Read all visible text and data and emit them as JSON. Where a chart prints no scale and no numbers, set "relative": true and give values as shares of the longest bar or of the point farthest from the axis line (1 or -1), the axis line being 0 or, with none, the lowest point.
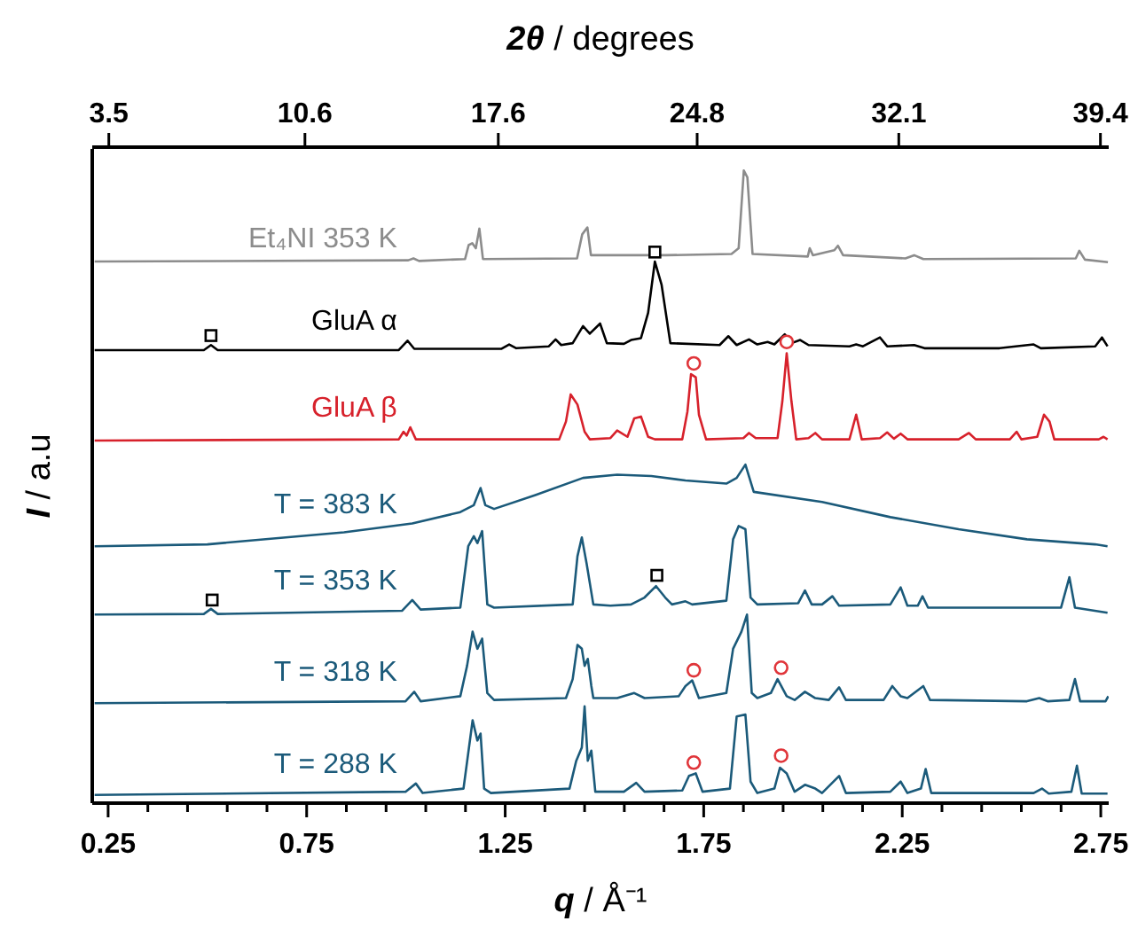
{
  "chart_data": {
    "type": "line",
    "relative": true,
    "xlabel": "q / Å⁻¹",
    "ylabel": "I / a.u",
    "x2label": "2θ / degrees",
    "marker": "none",
    "xlim": [
      0.21,
      2.77
    ],
    "xticks": [
      0.25,
      {
        "value": 0.35,
        "label": null
      },
      {
        "value": 0.45,
        "label": null
      },
      {
        "value": 0.55,
        "label": null
      },
      {
        "value": 0.65,
        "label": null
      },
      0.75,
      {
        "value": 0.85,
        "label": null
      },
      {
        "value": 0.95,
        "label": null
      },
      {
        "value": 1.05,
        "label": null
      },
      {
        "value": 1.15,
        "label": null
      },
      1.25,
      {
        "value": 1.35,
        "label": null
      },
      {
        "value": 1.45,
        "label": null
      },
      {
        "value": 1.55,
        "label": null
      },
      {
        "value": 1.65,
        "label": null
      },
      1.75,
      {
        "value": 1.85,
        "label": null
      },
      {
        "value": 1.95,
        "label": null
      },
      {
        "value": 2.05,
        "label": null
      },
      {
        "value": 2.15,
        "label": null
      },
      2.25,
      {
        "value": 2.35,
        "label": null
      },
      {
        "value": 2.45,
        "label": null
      },
      {
        "value": 2.55,
        "label": null
      },
      {
        "value": 2.65,
        "label": null
      },
      2.75
    ],
    "x2lim": [
      2.9,
      39.7
    ],
    "x2ticks": [
      3.5,
      10.6,
      17.6,
      24.8,
      32.1,
      39.4
    ],
    "series": [
      {
        "name": "Et₄NI 353 K",
        "color": "#8c8c8c",
        "x": [
          0.216,
          1.006,
          1.019,
          1.033,
          1.149,
          1.158,
          1.167,
          1.176,
          1.185,
          1.194,
          1.431,
          1.444,
          1.457,
          1.466,
          1.654,
          1.82,
          1.838,
          1.851,
          1.86,
          1.873,
          2.012,
          2.017,
          2.025,
          2.079,
          2.088,
          2.101,
          2.258,
          2.28,
          2.303,
          2.687,
          2.696,
          2.71,
          2.768
        ],
        "values": [
          0.856,
          0.858,
          0.861,
          0.857,
          0.86,
          0.882,
          0.885,
          0.877,
          0.908,
          0.86,
          0.861,
          0.899,
          0.91,
          0.866,
          0.866,
          0.868,
          0.877,
          1.0,
          0.989,
          0.868,
          0.864,
          0.877,
          0.866,
          0.874,
          0.881,
          0.866,
          0.861,
          0.866,
          0.86,
          0.861,
          0.873,
          0.859,
          0.855
        ]
      },
      {
        "name": "GluA α",
        "color": "#000000",
        "x": [
          0.216,
          0.491,
          0.509,
          0.526,
          0.982,
          1.004,
          1.021,
          1.24,
          1.26,
          1.278,
          1.36,
          1.377,
          1.391,
          1.42,
          1.446,
          1.463,
          1.489,
          1.506,
          1.549,
          1.567,
          1.592,
          1.61,
          1.627,
          1.644,
          1.666,
          1.79,
          1.812,
          1.833,
          1.864,
          1.885,
          1.911,
          1.928,
          1.954,
          1.971,
          1.993,
          2.014,
          2.117,
          2.134,
          2.151,
          2.194,
          2.212,
          2.28,
          2.306,
          2.495,
          2.581,
          2.599,
          2.736,
          2.753,
          2.767
        ],
        "values": [
          0.716,
          0.716,
          0.724,
          0.716,
          0.716,
          0.731,
          0.718,
          0.718,
          0.725,
          0.719,
          0.722,
          0.733,
          0.724,
          0.727,
          0.754,
          0.742,
          0.758,
          0.727,
          0.726,
          0.732,
          0.735,
          0.775,
          0.856,
          0.819,
          0.727,
          0.724,
          0.738,
          0.724,
          0.733,
          0.725,
          0.729,
          0.725,
          0.741,
          0.727,
          0.732,
          0.724,
          0.722,
          0.725,
          0.722,
          0.736,
          0.722,
          0.724,
          0.719,
          0.719,
          0.725,
          0.719,
          0.722,
          0.736,
          0.722
        ]
      },
      {
        "name": "GluA β",
        "color": "#d7212b",
        "x": [
          0.216,
          0.982,
          0.994,
          1.002,
          1.011,
          1.025,
          1.386,
          1.403,
          1.415,
          1.432,
          1.45,
          1.463,
          1.515,
          1.532,
          1.558,
          1.575,
          1.592,
          1.61,
          1.627,
          1.696,
          1.709,
          1.718,
          1.73,
          1.738,
          1.756,
          1.85,
          1.864,
          1.881,
          1.936,
          1.948,
          1.959,
          1.971,
          1.983,
          2.014,
          2.031,
          2.048,
          2.117,
          2.134,
          2.148,
          2.194,
          2.212,
          2.229,
          2.246,
          2.263,
          2.392,
          2.418,
          2.435,
          2.521,
          2.538,
          2.55,
          2.59,
          2.607,
          2.621,
          2.633,
          2.745,
          2.757,
          2.767
        ],
        "values": [
          0.573,
          0.575,
          0.587,
          0.581,
          0.594,
          0.575,
          0.575,
          0.603,
          0.646,
          0.63,
          0.587,
          0.575,
          0.577,
          0.589,
          0.579,
          0.608,
          0.611,
          0.579,
          0.575,
          0.575,
          0.619,
          0.678,
          0.673,
          0.614,
          0.575,
          0.577,
          0.585,
          0.577,
          0.577,
          0.635,
          0.711,
          0.635,
          0.575,
          0.577,
          0.585,
          0.575,
          0.575,
          0.614,
          0.575,
          0.577,
          0.586,
          0.576,
          0.584,
          0.575,
          0.575,
          0.585,
          0.575,
          0.575,
          0.587,
          0.575,
          0.579,
          0.614,
          0.603,
          0.575,
          0.575,
          0.579,
          0.575
        ]
      },
      {
        "name": "T = 383 K",
        "color": "#1b5a7a",
        "x": [
          0.216,
          0.5,
          0.844,
          1.016,
          1.137,
          1.171,
          1.188,
          1.2,
          1.222,
          1.326,
          1.446,
          1.532,
          1.618,
          1.704,
          1.807,
          1.833,
          1.855,
          1.876,
          2.048,
          2.22,
          2.392,
          2.564,
          2.736,
          2.767
        ],
        "values": [
          0.406,
          0.409,
          0.428,
          0.442,
          0.46,
          0.471,
          0.498,
          0.471,
          0.465,
          0.487,
          0.514,
          0.519,
          0.517,
          0.51,
          0.505,
          0.514,
          0.535,
          0.492,
          0.476,
          0.452,
          0.433,
          0.417,
          0.409,
          0.406
        ]
      },
      {
        "name": "T = 353 K",
        "color": "#1b5a7a",
        "x": [
          0.216,
          0.491,
          0.509,
          0.526,
          0.99,
          1.016,
          1.037,
          1.137,
          1.157,
          1.171,
          1.18,
          1.192,
          1.205,
          1.222,
          1.42,
          1.432,
          1.443,
          1.455,
          1.472,
          1.515,
          1.567,
          1.601,
          1.63,
          1.653,
          1.67,
          1.704,
          1.721,
          1.807,
          1.824,
          1.838,
          1.855,
          1.868,
          1.885,
          1.988,
          2.005,
          2.022,
          2.048,
          2.074,
          2.091,
          2.22,
          2.246,
          2.263,
          2.289,
          2.301,
          2.315,
          2.65,
          2.671,
          2.685,
          2.767
        ],
        "values": [
          0.298,
          0.299,
          0.307,
          0.299,
          0.304,
          0.321,
          0.306,
          0.309,
          0.406,
          0.422,
          0.411,
          0.43,
          0.314,
          0.309,
          0.314,
          0.39,
          0.42,
          0.379,
          0.314,
          0.312,
          0.314,
          0.325,
          0.343,
          0.325,
          0.314,
          0.319,
          0.314,
          0.32,
          0.417,
          0.438,
          0.433,
          0.325,
          0.314,
          0.316,
          0.336,
          0.314,
          0.314,
          0.327,
          0.312,
          0.314,
          0.341,
          0.312,
          0.312,
          0.327,
          0.309,
          0.309,
          0.357,
          0.309,
          0.301
        ]
      },
      {
        "name": "T = 318 K",
        "color": "#1b5a7a",
        "x": [
          0.216,
          0.999,
          1.021,
          1.037,
          1.137,
          1.154,
          1.168,
          1.18,
          1.192,
          1.205,
          1.222,
          1.403,
          1.42,
          1.432,
          1.443,
          1.45,
          1.458,
          1.467,
          1.472,
          1.532,
          1.575,
          1.601,
          1.687,
          1.704,
          1.721,
          1.738,
          1.807,
          1.824,
          1.845,
          1.859,
          1.871,
          1.885,
          1.919,
          1.936,
          1.959,
          1.979,
          2.005,
          2.031,
          2.065,
          2.091,
          2.108,
          2.203,
          2.225,
          2.246,
          2.263,
          2.303,
          2.32,
          2.564,
          2.595,
          2.616,
          2.671,
          2.685,
          2.698,
          2.762,
          2.769
        ],
        "values": [
          0.158,
          0.161,
          0.176,
          0.161,
          0.169,
          0.217,
          0.271,
          0.244,
          0.26,
          0.174,
          0.163,
          0.166,
          0.196,
          0.25,
          0.244,
          0.217,
          0.228,
          0.185,
          0.166,
          0.166,
          0.174,
          0.166,
          0.169,
          0.185,
          0.194,
          0.166,
          0.174,
          0.244,
          0.271,
          0.298,
          0.174,
          0.166,
          0.174,
          0.196,
          0.169,
          0.163,
          0.176,
          0.166,
          0.163,
          0.183,
          0.163,
          0.163,
          0.185,
          0.169,
          0.166,
          0.185,
          0.163,
          0.161,
          0.166,
          0.161,
          0.163,
          0.196,
          0.161,
          0.161,
          0.169
        ]
      },
      {
        "name": "T = 288 K",
        "color": "#1b5a7a",
        "x": [
          0.216,
          0.999,
          1.025,
          1.042,
          1.145,
          1.168,
          1.18,
          1.188,
          1.197,
          1.214,
          1.412,
          1.429,
          1.443,
          1.45,
          1.458,
          1.467,
          1.477,
          1.549,
          1.58,
          1.601,
          1.696,
          1.713,
          1.73,
          1.747,
          1.816,
          1.833,
          1.855,
          1.868,
          1.885,
          1.928,
          1.942,
          1.959,
          1.979,
          2.005,
          2.031,
          2.048,
          2.091,
          2.108,
          2.22,
          2.246,
          2.263,
          2.297,
          2.309,
          2.323,
          2.581,
          2.602,
          2.619,
          2.676,
          2.69,
          2.702,
          2.767
        ],
        "values": [
          0.013,
          0.018,
          0.031,
          0.016,
          0.023,
          0.131,
          0.099,
          0.11,
          0.023,
          0.016,
          0.023,
          0.067,
          0.088,
          0.153,
          0.067,
          0.083,
          0.018,
          0.018,
          0.032,
          0.018,
          0.02,
          0.043,
          0.047,
          0.018,
          0.023,
          0.137,
          0.14,
          0.034,
          0.016,
          0.023,
          0.056,
          0.047,
          0.018,
          0.029,
          0.023,
          0.016,
          0.043,
          0.016,
          0.018,
          0.034,
          0.016,
          0.023,
          0.054,
          0.016,
          0.016,
          0.023,
          0.015,
          0.018,
          0.059,
          0.015,
          0.015
        ]
      },
      {
        "type": "scatter",
        "marker": "square",
        "color": "#000000",
        "x": [
          0.509,
          1.627,
          0.512,
          1.632
        ],
        "values": [
          0.739,
          0.871,
          0.321,
          0.36
        ]
      },
      {
        "type": "scatter",
        "marker": "circle",
        "color": "#e0353a",
        "x": [
          1.725,
          1.959,
          1.725,
          1.945,
          1.725,
          1.945
        ],
        "values": [
          0.695,
          0.729,
          0.21,
          0.214,
          0.064,
          0.075
        ]
      }
    ]
  }
}
